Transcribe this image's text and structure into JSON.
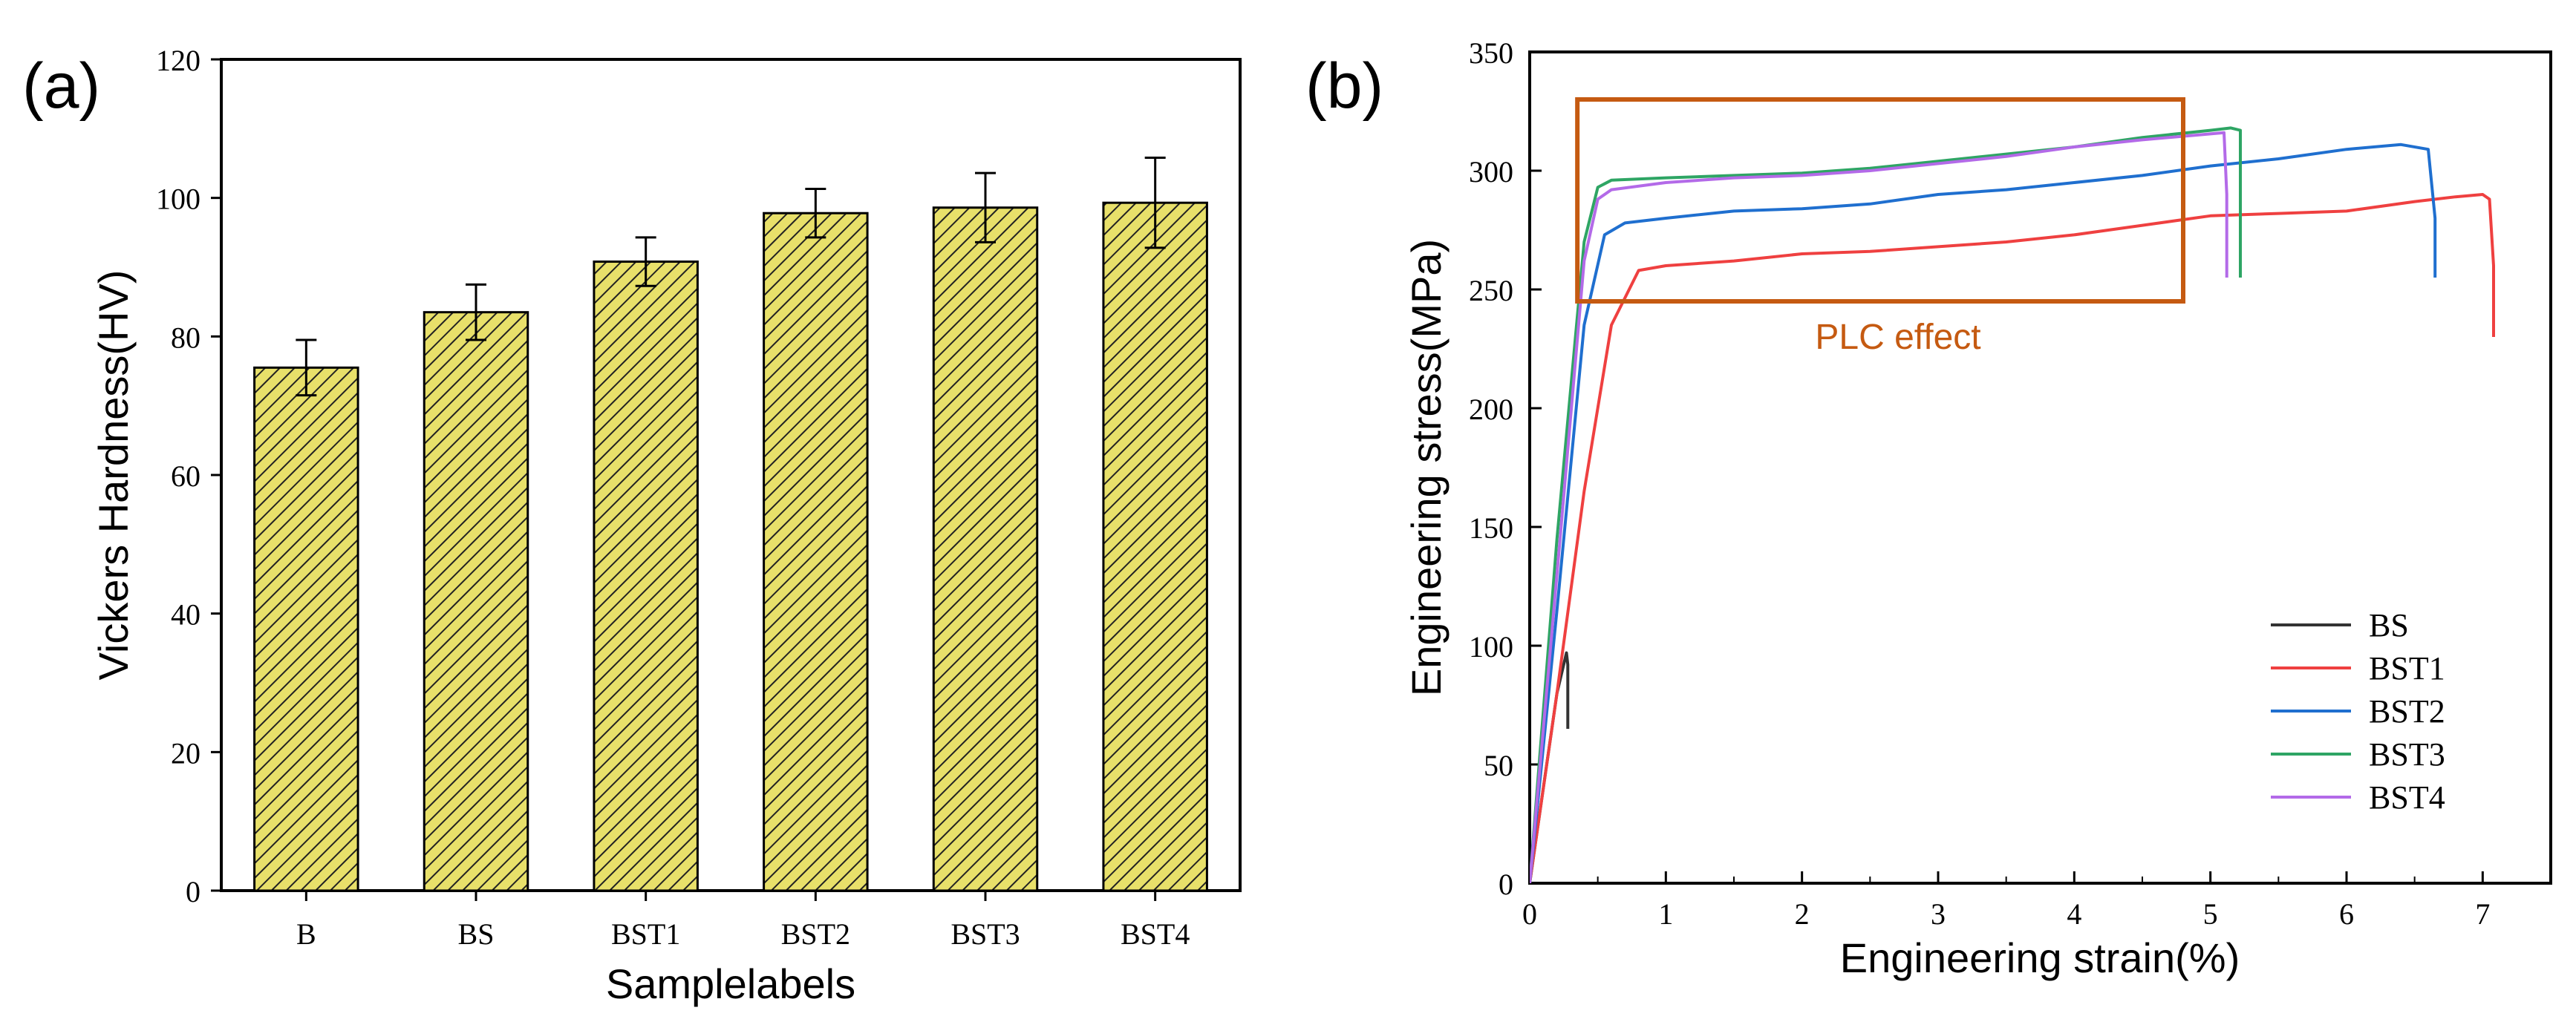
{
  "chart_data": [
    {
      "type": "bar",
      "panel_label": "(a)",
      "xlabel": "Samplelabels",
      "ylabel": "Vickers Hardness(HV)",
      "categories": [
        "B",
        "BS",
        "BST1",
        "BST2",
        "BST3",
        "BST4"
      ],
      "values": [
        75.5,
        83.5,
        90.8,
        97.8,
        98.6,
        99.3
      ],
      "errors": [
        4.0,
        4.0,
        3.5,
        3.5,
        5.0,
        6.5
      ],
      "ylim": [
        0,
        120
      ],
      "yticks": [
        "0",
        "20",
        "40",
        "60",
        "80",
        "100",
        "120"
      ],
      "bar_color": "#e8e06a",
      "hatch": "diagonal",
      "grid": false
    },
    {
      "type": "line",
      "panel_label": "(b)",
      "xlabel": "Engineering strain(%)",
      "ylabel": "Engineering stress(MPa)",
      "xlim": [
        0,
        7.5
      ],
      "ylim": [
        0,
        350
      ],
      "xticks": [
        "0",
        "1",
        "2",
        "3",
        "4",
        "5",
        "6",
        "7"
      ],
      "yticks": [
        "0",
        "50",
        "100",
        "150",
        "200",
        "250",
        "300",
        "350"
      ],
      "legend_position": "bottom-right",
      "grid": false,
      "annotation": {
        "text": "PLC effect",
        "color": "#c55a11",
        "box_x": [
          0.35,
          4.8
        ],
        "box_y": [
          245,
          330
        ]
      },
      "series": [
        {
          "name": "BS",
          "color": "#333333",
          "x": [
            0.0,
            0.1,
            0.2,
            0.27,
            0.28,
            0.28
          ],
          "y": [
            0,
            40,
            80,
            97,
            92,
            65
          ]
        },
        {
          "name": "BST1",
          "color": "#ef4040",
          "x": [
            0.0,
            0.2,
            0.4,
            0.6,
            0.8,
            1.0,
            1.5,
            2.0,
            2.5,
            3.0,
            3.5,
            4.0,
            4.5,
            5.0,
            5.5,
            6.0,
            6.5,
            6.8,
            7.0,
            7.05,
            7.08,
            7.08
          ],
          "y": [
            0,
            80,
            165,
            235,
            258,
            260,
            262,
            265,
            266,
            268,
            270,
            273,
            277,
            281,
            282,
            283,
            287,
            289,
            290,
            288,
            260,
            230
          ]
        },
        {
          "name": "BST2",
          "color": "#1f6fcf",
          "x": [
            0.0,
            0.2,
            0.4,
            0.55,
            0.7,
            1.0,
            1.5,
            2.0,
            2.5,
            3.0,
            3.5,
            4.0,
            4.5,
            5.0,
            5.5,
            6.0,
            6.4,
            6.6,
            6.65,
            6.65
          ],
          "y": [
            0,
            115,
            235,
            273,
            278,
            280,
            283,
            284,
            286,
            290,
            292,
            295,
            298,
            302,
            305,
            309,
            311,
            309,
            280,
            255
          ]
        },
        {
          "name": "BST3",
          "color": "#2ea564",
          "x": [
            0.0,
            0.2,
            0.4,
            0.5,
            0.6,
            1.0,
            1.5,
            2.0,
            2.5,
            3.0,
            3.5,
            4.0,
            4.5,
            5.0,
            5.15,
            5.22,
            5.22
          ],
          "y": [
            0,
            145,
            270,
            293,
            296,
            297,
            298,
            299,
            301,
            304,
            307,
            310,
            314,
            317,
            318,
            317,
            255
          ]
        },
        {
          "name": "BST4",
          "color": "#b36ae8",
          "x": [
            0.0,
            0.2,
            0.4,
            0.5,
            0.6,
            1.0,
            1.5,
            2.0,
            2.5,
            3.0,
            3.5,
            4.0,
            4.5,
            4.9,
            5.1,
            5.12,
            5.12
          ],
          "y": [
            0,
            130,
            262,
            288,
            292,
            295,
            297,
            298,
            300,
            303,
            306,
            310,
            313,
            315,
            316,
            290,
            255
          ]
        }
      ]
    }
  ]
}
